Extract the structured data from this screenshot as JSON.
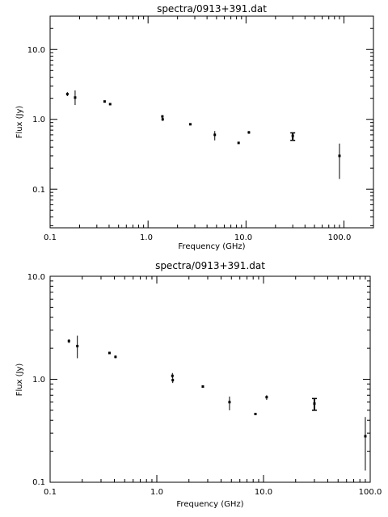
{
  "chart_data": [
    {
      "type": "scatter",
      "title": "spectra/0913+391.dat",
      "xlabel": "Frequency (GHz)",
      "ylabel": "Flux (Jy)",
      "xscale": "log",
      "yscale": "log",
      "xlim": [
        0.1,
        200
      ],
      "ylim": [
        0.028,
        30
      ],
      "xticklabels": [
        "0.1",
        "1.0",
        "10.0",
        "100.0"
      ],
      "yticklabels": [
        "0.1",
        "1.0",
        "10.0"
      ],
      "grid": false,
      "points": [
        {
          "x": 0.15,
          "y": 2.3,
          "lo": 2.15,
          "hi": 2.45
        },
        {
          "x": 0.18,
          "y": 2.05,
          "lo": 1.6,
          "hi": 2.6
        },
        {
          "x": 0.36,
          "y": 1.8,
          "lo": 1.78,
          "hi": 1.82
        },
        {
          "x": 0.41,
          "y": 1.65,
          "lo": 1.6,
          "hi": 1.7
        },
        {
          "x": 1.4,
          "y": 1.1,
          "lo": 1.05,
          "hi": 1.15
        },
        {
          "x": 1.41,
          "y": 1.0,
          "lo": 0.95,
          "hi": 1.05
        },
        {
          "x": 2.7,
          "y": 0.85,
          "lo": 0.83,
          "hi": 0.87
        },
        {
          "x": 4.8,
          "y": 0.6,
          "lo": 0.5,
          "hi": 0.68
        },
        {
          "x": 8.4,
          "y": 0.46,
          "lo": 0.45,
          "hi": 0.47
        },
        {
          "x": 10.7,
          "y": 0.65,
          "lo": 0.62,
          "hi": 0.68
        },
        {
          "x": 30.0,
          "y": 0.58,
          "lo": 0.5,
          "hi": 0.64,
          "cap": true
        },
        {
          "x": 90.0,
          "y": 0.3,
          "lo": 0.14,
          "hi": 0.45
        }
      ]
    },
    {
      "type": "scatter",
      "title": "spectra/0913+391.dat",
      "xlabel": "Frequency (GHz)",
      "ylabel": "Flux (Jy)",
      "xscale": "log",
      "yscale": "log",
      "xlim": [
        0.1,
        100
      ],
      "ylim": [
        0.1,
        10
      ],
      "xticklabels": [
        "0.1",
        "1.0",
        "10.0",
        "100.0"
      ],
      "yticklabels": [
        "0.1",
        "1.0",
        "10.0"
      ],
      "grid": false,
      "points": [
        {
          "x": 0.15,
          "y": 2.35,
          "lo": 2.25,
          "hi": 2.45
        },
        {
          "x": 0.18,
          "y": 2.1,
          "lo": 1.6,
          "hi": 2.65
        },
        {
          "x": 0.36,
          "y": 1.8,
          "lo": 1.78,
          "hi": 1.82
        },
        {
          "x": 0.41,
          "y": 1.65,
          "lo": 1.6,
          "hi": 1.7
        },
        {
          "x": 1.4,
          "y": 1.08,
          "lo": 1.03,
          "hi": 1.15
        },
        {
          "x": 1.41,
          "y": 0.98,
          "lo": 0.92,
          "hi": 1.04
        },
        {
          "x": 2.7,
          "y": 0.85,
          "lo": 0.83,
          "hi": 0.87
        },
        {
          "x": 4.8,
          "y": 0.6,
          "lo": 0.5,
          "hi": 0.68
        },
        {
          "x": 8.4,
          "y": 0.46,
          "lo": 0.45,
          "hi": 0.47
        },
        {
          "x": 10.7,
          "y": 0.67,
          "lo": 0.63,
          "hi": 0.7
        },
        {
          "x": 30.0,
          "y": 0.58,
          "lo": 0.5,
          "hi": 0.65,
          "cap": true
        },
        {
          "x": 90.0,
          "y": 0.28,
          "lo": 0.13,
          "hi": 0.43
        }
      ]
    }
  ]
}
